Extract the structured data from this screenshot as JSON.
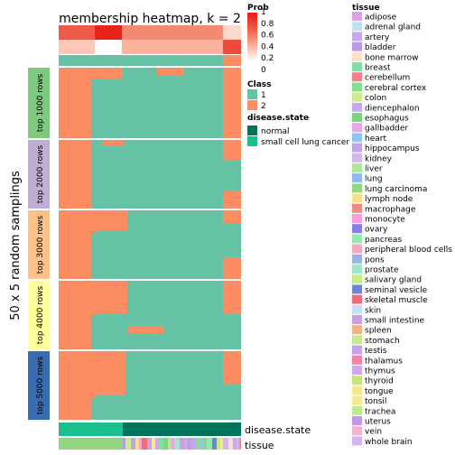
{
  "chart_data": {
    "type": "heatmap",
    "title": "membership heatmap, k = 2",
    "ylabel": "50 x 5 random samplings",
    "colors": {
      "class_1": "#66C2A5",
      "class_2": "#FC8D62",
      "normal": "#00735A",
      "small_cell": "#1ABF8E"
    },
    "groups": [
      {
        "label": "top 1000 rows",
        "color": "#7FC97F"
      },
      {
        "label": "top 2000 rows",
        "color": "#BEAED4"
      },
      {
        "label": "top 3000 rows",
        "color": "#FDC086"
      },
      {
        "label": "top 4000 rows",
        "color": "#FFFF99"
      },
      {
        "label": "top 5000 rows",
        "color": "#386CB0"
      }
    ],
    "bottom_labels": [
      "disease.state",
      "tissue"
    ],
    "legend_prob": {
      "title": "Prob",
      "ticks": [
        "1",
        "0.8",
        "0.6",
        "0.4",
        "0.2",
        "0"
      ]
    },
    "legend_class": {
      "title": "Class",
      "items": [
        {
          "label": "1",
          "color": "#66C2A5"
        },
        {
          "label": "2",
          "color": "#FC8D62"
        }
      ]
    },
    "legend_disease": {
      "title": "disease.state",
      "items": [
        {
          "label": "normal",
          "color": "#00735A"
        },
        {
          "label": "small cell lung cancer",
          "color": "#1ABF8E"
        }
      ]
    },
    "legend_tissue": {
      "title": "tissue",
      "items": [
        {
          "label": "adipose",
          "color": "#D9A3E6"
        },
        {
          "label": "adrenal gland",
          "color": "#BFE3F5"
        },
        {
          "label": "artery",
          "color": "#C7A6F0"
        },
        {
          "label": "bladder",
          "color": "#B89AE8"
        },
        {
          "label": "bone marrow",
          "color": "#FBE0C6"
        },
        {
          "label": "breast",
          "color": "#7EE0A8"
        },
        {
          "label": "cerebellum",
          "color": "#F77F8B"
        },
        {
          "label": "cerebral cortex",
          "color": "#86E092"
        },
        {
          "label": "colon",
          "color": "#C9EE8A"
        },
        {
          "label": "diencephalon",
          "color": "#C8A8EE"
        },
        {
          "label": "esophagus",
          "color": "#7AD67A"
        },
        {
          "label": "gallbadder",
          "color": "#E9A6E9"
        },
        {
          "label": "heart",
          "color": "#8FC5F5"
        },
        {
          "label": "hippocampus",
          "color": "#C0A6E8"
        },
        {
          "label": "kidney",
          "color": "#D7B6EA"
        },
        {
          "label": "liver",
          "color": "#B2E69C"
        },
        {
          "label": "lung",
          "color": "#8FB8F0"
        },
        {
          "label": "lung carcinoma",
          "color": "#92D77F"
        },
        {
          "label": "lymph node",
          "color": "#F5DE8C"
        },
        {
          "label": "macrophage",
          "color": "#F08A84"
        },
        {
          "label": "monocyte",
          "color": "#F79FDE"
        },
        {
          "label": "ovary",
          "color": "#8C7BEB"
        },
        {
          "label": "pancreas",
          "color": "#94E8B2"
        },
        {
          "label": "peripheral blood cells",
          "color": "#F7A6C0"
        },
        {
          "label": "pons",
          "color": "#97B4E0"
        },
        {
          "label": "prostate",
          "color": "#9BE8CE"
        },
        {
          "label": "salivary gland",
          "color": "#C6EE86"
        },
        {
          "label": "seminal vesicle",
          "color": "#6A86D8"
        },
        {
          "label": "skeletal muscle",
          "color": "#F26B7A"
        },
        {
          "label": "skin",
          "color": "#C4DFF7"
        },
        {
          "label": "small intestine",
          "color": "#C8A0E6"
        },
        {
          "label": "spleen",
          "color": "#F5B27E"
        },
        {
          "label": "stomach",
          "color": "#CBE78E"
        },
        {
          "label": "testis",
          "color": "#C5A2EB"
        },
        {
          "label": "thalamus",
          "color": "#F47FA8"
        },
        {
          "label": "thymus",
          "color": "#D0A6EC"
        },
        {
          "label": "thyroid",
          "color": "#C5E67E"
        },
        {
          "label": "tongue",
          "color": "#F5E78F"
        },
        {
          "label": "tonsil",
          "color": "#F5EB8E"
        },
        {
          "label": "trachea",
          "color": "#BDEB8F"
        },
        {
          "label": "uterus",
          "color": "#C19AE6"
        },
        {
          "label": "vein",
          "color": "#F5AFD3"
        },
        {
          "label": "whole brain",
          "color": "#D3B6F0"
        }
      ]
    }
  }
}
